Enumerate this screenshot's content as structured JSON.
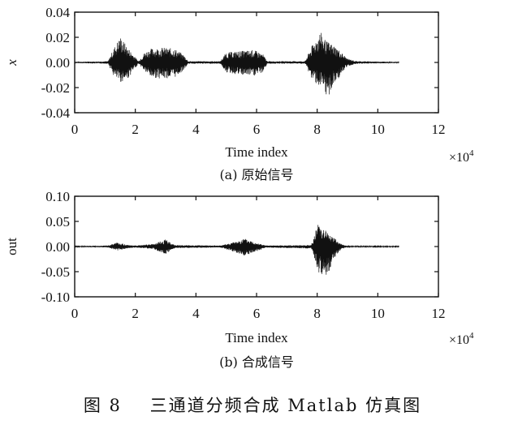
{
  "chart_data": [
    {
      "type": "line",
      "panel": "(a)",
      "caption": "(a)  原始信号",
      "xlabel": "Time index",
      "ylabel": "x",
      "x_scale_label": "×10",
      "x_scale_exp": "4",
      "xlim": [
        0,
        12
      ],
      "ylim": [
        -0.04,
        0.04
      ],
      "xticks": [
        "0",
        "2",
        "4",
        "6",
        "8",
        "10",
        "12"
      ],
      "yticks": [
        "0.04",
        "0.02",
        "0.00",
        "-0.02",
        "-0.04"
      ],
      "ytick_values": [
        0.04,
        0.02,
        0.0,
        -0.02,
        -0.04
      ],
      "signal_end": 10.7,
      "envelope": [
        {
          "x": 0.0,
          "pos": 0.0005,
          "neg": -0.0005
        },
        {
          "x": 1.1,
          "pos": 0.001,
          "neg": -0.001
        },
        {
          "x": 1.3,
          "pos": 0.012,
          "neg": -0.012
        },
        {
          "x": 1.5,
          "pos": 0.021,
          "neg": -0.016
        },
        {
          "x": 1.75,
          "pos": 0.012,
          "neg": -0.013
        },
        {
          "x": 1.95,
          "pos": 0.006,
          "neg": -0.006
        },
        {
          "x": 2.1,
          "pos": 0.001,
          "neg": -0.001
        },
        {
          "x": 2.3,
          "pos": 0.008,
          "neg": -0.007
        },
        {
          "x": 2.5,
          "pos": 0.011,
          "neg": -0.012
        },
        {
          "x": 2.9,
          "pos": 0.012,
          "neg": -0.013
        },
        {
          "x": 3.3,
          "pos": 0.011,
          "neg": -0.012
        },
        {
          "x": 3.6,
          "pos": 0.006,
          "neg": -0.006
        },
        {
          "x": 3.75,
          "pos": 0.001,
          "neg": -0.001
        },
        {
          "x": 4.8,
          "pos": 0.001,
          "neg": -0.001
        },
        {
          "x": 5.0,
          "pos": 0.008,
          "neg": -0.008
        },
        {
          "x": 5.4,
          "pos": 0.009,
          "neg": -0.01
        },
        {
          "x": 5.9,
          "pos": 0.01,
          "neg": -0.011
        },
        {
          "x": 6.2,
          "pos": 0.007,
          "neg": -0.008
        },
        {
          "x": 6.35,
          "pos": 0.001,
          "neg": -0.001
        },
        {
          "x": 7.6,
          "pos": 0.001,
          "neg": -0.001
        },
        {
          "x": 7.8,
          "pos": 0.012,
          "neg": -0.013
        },
        {
          "x": 8.1,
          "pos": 0.025,
          "neg": -0.02
        },
        {
          "x": 8.3,
          "pos": 0.017,
          "neg": -0.03
        },
        {
          "x": 8.6,
          "pos": 0.013,
          "neg": -0.016
        },
        {
          "x": 9.0,
          "pos": 0.003,
          "neg": -0.003
        },
        {
          "x": 9.3,
          "pos": 0.001,
          "neg": -0.001
        },
        {
          "x": 10.7,
          "pos": 0.0005,
          "neg": -0.0005
        }
      ]
    },
    {
      "type": "line",
      "panel": "(b)",
      "caption": "(b)  合成信号",
      "xlabel": "Time index",
      "ylabel": "out",
      "x_scale_label": "×10",
      "x_scale_exp": "4",
      "xlim": [
        0,
        12
      ],
      "ylim": [
        -0.1,
        0.1
      ],
      "xticks": [
        "0",
        "2",
        "4",
        "6",
        "8",
        "10",
        "12"
      ],
      "yticks": [
        "0.10",
        "0.05",
        "0.00",
        "-0.05",
        "-0.10"
      ],
      "ytick_values": [
        0.1,
        0.05,
        0.0,
        -0.05,
        -0.1
      ],
      "signal_end": 10.7,
      "envelope": [
        {
          "x": 0.0,
          "pos": 0.001,
          "neg": -0.001
        },
        {
          "x": 1.1,
          "pos": 0.002,
          "neg": -0.002
        },
        {
          "x": 1.4,
          "pos": 0.008,
          "neg": -0.008
        },
        {
          "x": 1.7,
          "pos": 0.004,
          "neg": -0.004
        },
        {
          "x": 1.95,
          "pos": 0.002,
          "neg": -0.002
        },
        {
          "x": 2.6,
          "pos": 0.005,
          "neg": -0.005
        },
        {
          "x": 3.0,
          "pos": 0.014,
          "neg": -0.016
        },
        {
          "x": 3.3,
          "pos": 0.003,
          "neg": -0.003
        },
        {
          "x": 4.8,
          "pos": 0.002,
          "neg": -0.002
        },
        {
          "x": 5.2,
          "pos": 0.008,
          "neg": -0.01
        },
        {
          "x": 5.6,
          "pos": 0.016,
          "neg": -0.018
        },
        {
          "x": 6.0,
          "pos": 0.008,
          "neg": -0.01
        },
        {
          "x": 6.3,
          "pos": 0.002,
          "neg": -0.002
        },
        {
          "x": 7.8,
          "pos": 0.003,
          "neg": -0.004
        },
        {
          "x": 8.05,
          "pos": 0.05,
          "neg": -0.052
        },
        {
          "x": 8.25,
          "pos": 0.035,
          "neg": -0.07
        },
        {
          "x": 8.5,
          "pos": 0.02,
          "neg": -0.03
        },
        {
          "x": 8.8,
          "pos": 0.005,
          "neg": -0.005
        },
        {
          "x": 9.0,
          "pos": 0.001,
          "neg": -0.001
        },
        {
          "x": 10.7,
          "pos": 0.001,
          "neg": -0.001
        }
      ]
    }
  ],
  "figure_title": "图 8    三通道分频合成 Matlab 仿真图",
  "colors": {
    "ink": "#111111",
    "background": "#ffffff"
  }
}
